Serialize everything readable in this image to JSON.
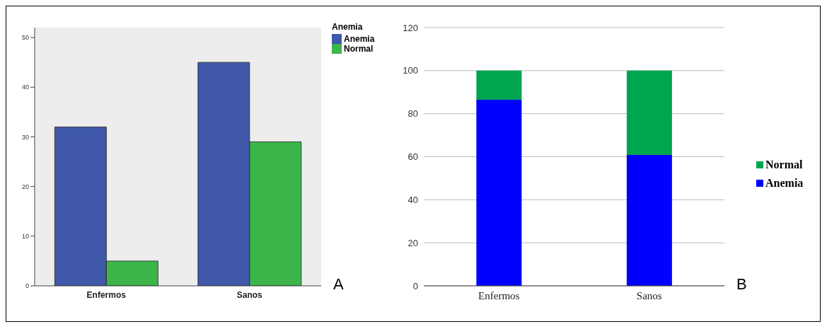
{
  "chart_data": [
    {
      "type": "bar",
      "categories": [
        "Enfermos",
        "Sanos"
      ],
      "legend_title": "Anemia",
      "legend": "top right",
      "ylim": [
        0,
        52
      ],
      "yticks": [
        0,
        10,
        20,
        30,
        40,
        50
      ],
      "annotations": [
        "A"
      ],
      "series": [
        {
          "name": "Anemia",
          "color": "#3f58a9",
          "values": [
            32,
            45
          ]
        },
        {
          "name": "Normal",
          "color": "#3cb54a",
          "values": [
            5,
            29
          ]
        }
      ]
    },
    {
      "type": "bar",
      "stacked": true,
      "categories": [
        "Enfermos",
        "Sanos"
      ],
      "legend": "right",
      "grid": "y",
      "ylim": [
        0,
        120
      ],
      "yticks": [
        0,
        20,
        40,
        60,
        80,
        100,
        120
      ],
      "annotations": [
        "B"
      ],
      "series": [
        {
          "name": "Anemia",
          "color": "#0000ff",
          "values": [
            86.5,
            60.8
          ]
        },
        {
          "name": "Normal",
          "color": "#00a550",
          "values": [
            13.5,
            39.2
          ]
        }
      ]
    }
  ]
}
